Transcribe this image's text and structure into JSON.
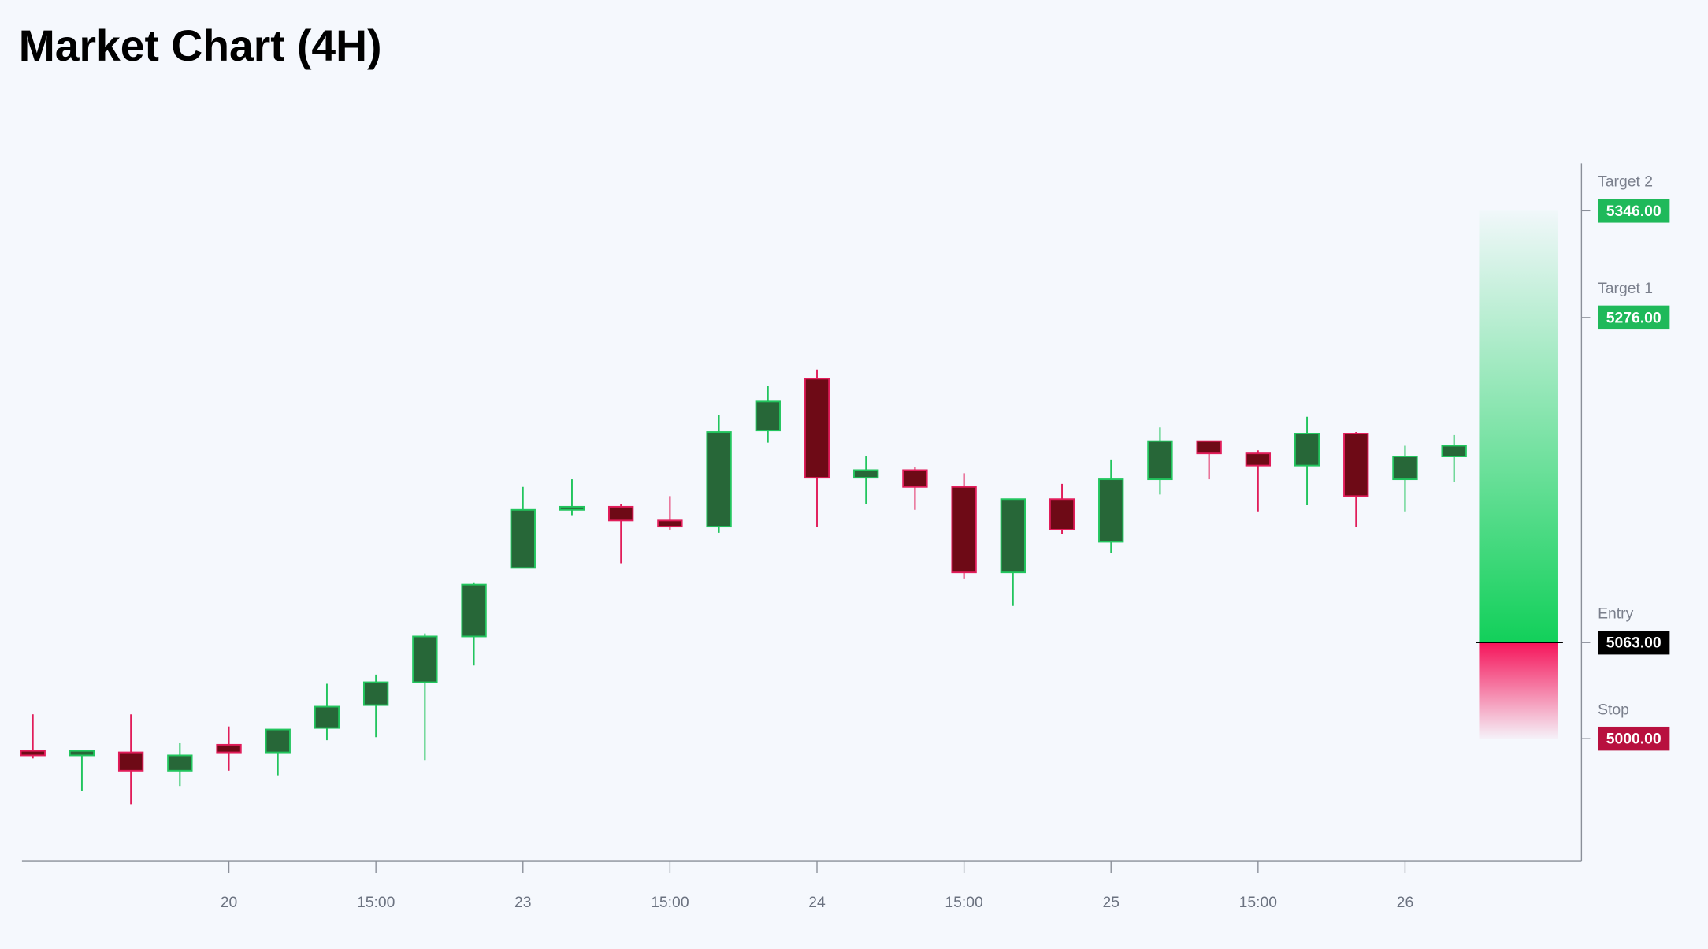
{
  "chart_data": {
    "type": "candlestick",
    "title": "Market Chart (4H)",
    "categories": [
      null,
      null,
      null,
      null,
      "20",
      null,
      null,
      "15:00",
      null,
      null,
      "23",
      null,
      null,
      "15:00",
      null,
      null,
      "24",
      null,
      null,
      "15:00",
      null,
      null,
      "25",
      null,
      null,
      "15:00",
      null,
      null,
      "26",
      null
    ],
    "open": [
      4992,
      4989,
      4991,
      4979,
      4996,
      4991,
      5007,
      5022,
      5037,
      5067,
      5112,
      5150,
      5152,
      5143,
      5139,
      5202,
      5236,
      5171,
      5176,
      5165,
      5109,
      5157,
      5129,
      5170,
      5195,
      5187,
      5179,
      5200,
      5170,
      5185
    ],
    "high": [
      5016,
      4992,
      5016,
      4997,
      5008,
      5006,
      5036,
      5042,
      5069,
      5102,
      5165,
      5170,
      5154,
      5159,
      5212,
      5231,
      5242,
      5185,
      5178,
      5174,
      5157,
      5167,
      5183,
      5204,
      5195,
      5189,
      5211,
      5201,
      5192,
      5199
    ],
    "low": [
      4987,
      4966,
      4957,
      4969,
      4979,
      4976,
      4999,
      5001,
      4986,
      5048,
      5112,
      5146,
      5115,
      5137,
      5135,
      5194,
      5139,
      5154,
      5150,
      5105,
      5087,
      5134,
      5122,
      5160,
      5170,
      5149,
      5153,
      5139,
      5149,
      5168
    ],
    "close": [
      4989,
      4992,
      4979,
      4989,
      4991,
      5006,
      5021,
      5037,
      5067,
      5101,
      5150,
      5152,
      5143,
      5139,
      5201,
      5221,
      5171,
      5176,
      5165,
      5109,
      5157,
      5137,
      5170,
      5195,
      5187,
      5179,
      5200,
      5159,
      5185,
      5192
    ],
    "up_color": "#22c55e",
    "up_fill": "#276738",
    "down_color": "#e11d5a",
    "down_fill": "#6e0a16",
    "ylim": [
      4920,
      5377
    ],
    "levels": [
      {
        "name": "Target 2",
        "value": 5346,
        "label": "5346.00",
        "color": "#1fb95a"
      },
      {
        "name": "Target 1",
        "value": 5276,
        "label": "5276.00",
        "color": "#1fb95a"
      },
      {
        "name": "Entry",
        "value": 5063,
        "label": "5063.00",
        "color": "#000000"
      },
      {
        "name": "Stop",
        "value": 5000,
        "label": "5000.00",
        "color": "#b8103f"
      }
    ]
  }
}
